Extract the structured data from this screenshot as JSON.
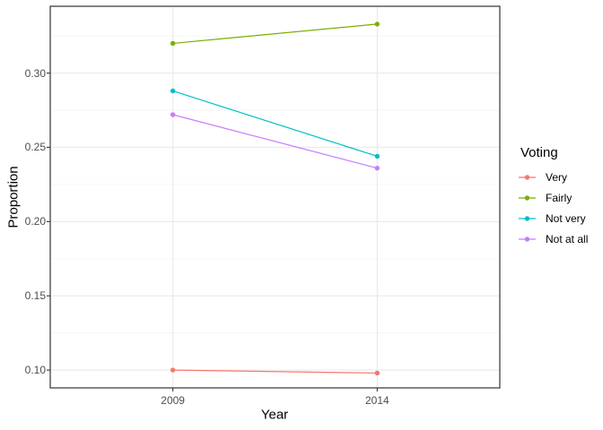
{
  "chart_data": {
    "type": "line",
    "title": "",
    "xlabel": "Year",
    "ylabel": "Proportion",
    "categories": [
      "2009",
      "2014"
    ],
    "series": [
      {
        "name": "Very",
        "color": "#F8766D",
        "values": [
          0.1,
          0.098
        ]
      },
      {
        "name": "Fairly",
        "color": "#7CAE00",
        "values": [
          0.32,
          0.333
        ]
      },
      {
        "name": "Not very",
        "color": "#00BFC4",
        "values": [
          0.288,
          0.244
        ]
      },
      {
        "name": "Not at all",
        "color": "#C77CFF",
        "values": [
          0.272,
          0.236
        ]
      }
    ],
    "y_ticks": [
      0.1,
      0.15,
      0.2,
      0.25,
      0.3
    ],
    "y_tick_labels": [
      "0.10",
      "0.15",
      "0.20",
      "0.25",
      "0.30"
    ],
    "y_minor_ticks": [
      0.125,
      0.175,
      0.225,
      0.275,
      0.325
    ],
    "ylim": [
      0.088,
      0.345
    ],
    "grid": true,
    "legend": {
      "title": "Voting",
      "position": "right"
    },
    "style": {
      "panel_border_color": "#333333",
      "grid_major_color": "#EBEBEB",
      "grid_minor_color": "#F5F5F5",
      "tick_mark_color": "#333333",
      "tick_label_color": "#4d4d4d",
      "background": "#ffffff"
    }
  }
}
